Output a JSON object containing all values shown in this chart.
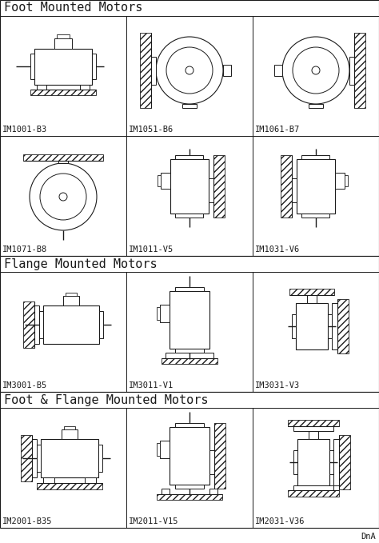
{
  "sec_titles": [
    "Foot Mounted Motors",
    "Flange Mounted Motors",
    "Foot & Flange Mounted Motors"
  ],
  "codes": [
    [
      "IM1001-B3",
      "IM1051-B6",
      "IM1061-B7"
    ],
    [
      "IM1071-B8",
      "IM1011-V5",
      "IM1031-V6"
    ],
    [
      "IM3001-B5",
      "IM3011-V1",
      "IM3031-V3"
    ],
    [
      "IM2001-B35",
      "IM2011-V15",
      "IM2031-V36"
    ]
  ],
  "watermark": "DnA",
  "bg_color": "#ffffff",
  "line_color": "#1a1a1a",
  "font_family": "monospace",
  "title_fontsize": 11,
  "code_fontsize": 7.5,
  "fig_w": 4.74,
  "fig_h": 6.79,
  "dpi": 100
}
